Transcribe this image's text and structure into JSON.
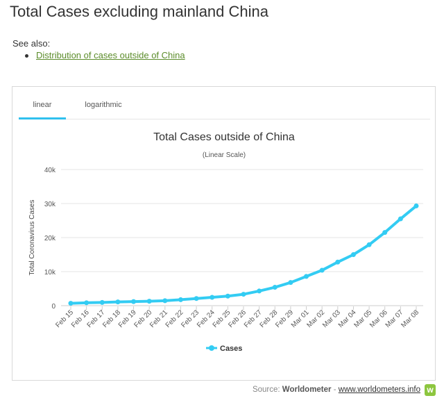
{
  "page": {
    "title": "Total Cases excluding mainland China",
    "see_also_label": "See also:",
    "see_also_link": "Distribution of cases outside of China"
  },
  "tabs": [
    {
      "label": "linear",
      "active": true
    },
    {
      "label": "logarithmic",
      "active": false
    }
  ],
  "footer": {
    "source_prefix": "Source:",
    "source_name": "Worldometer",
    "separator": "-",
    "source_link": "www.worldometers.info",
    "logo_letter": "w"
  },
  "chart_data": {
    "type": "line",
    "title": "Total Cases outside of China",
    "subtitle": "(Linear Scale)",
    "ylabel": "Total Coronavirus Cases",
    "ylim": [
      0,
      40000
    ],
    "yticks": [
      0,
      10000,
      20000,
      30000,
      40000
    ],
    "ytick_labels": [
      "0",
      "10k",
      "20k",
      "30k",
      "40k"
    ],
    "categories": [
      "Feb 15",
      "Feb 16",
      "Feb 17",
      "Feb 18",
      "Feb 19",
      "Feb 20",
      "Feb 21",
      "Feb 22",
      "Feb 23",
      "Feb 24",
      "Feb 25",
      "Feb 26",
      "Feb 27",
      "Feb 28",
      "Feb 29",
      "Mar 01",
      "Mar 02",
      "Mar 03",
      "Mar 04",
      "Mar 05",
      "Mar 06",
      "Mar 07",
      "Mar 08"
    ],
    "series": [
      {
        "name": "Cases",
        "color": "#33ccf3",
        "values": [
          700,
          850,
          950,
          1100,
          1200,
          1300,
          1450,
          1750,
          2100,
          2450,
          2800,
          3350,
          4300,
          5400,
          6800,
          8600,
          10400,
          12800,
          15000,
          17900,
          21500,
          25500,
          29300
        ]
      }
    ],
    "legend_position": "bottom-center",
    "grid": true
  }
}
